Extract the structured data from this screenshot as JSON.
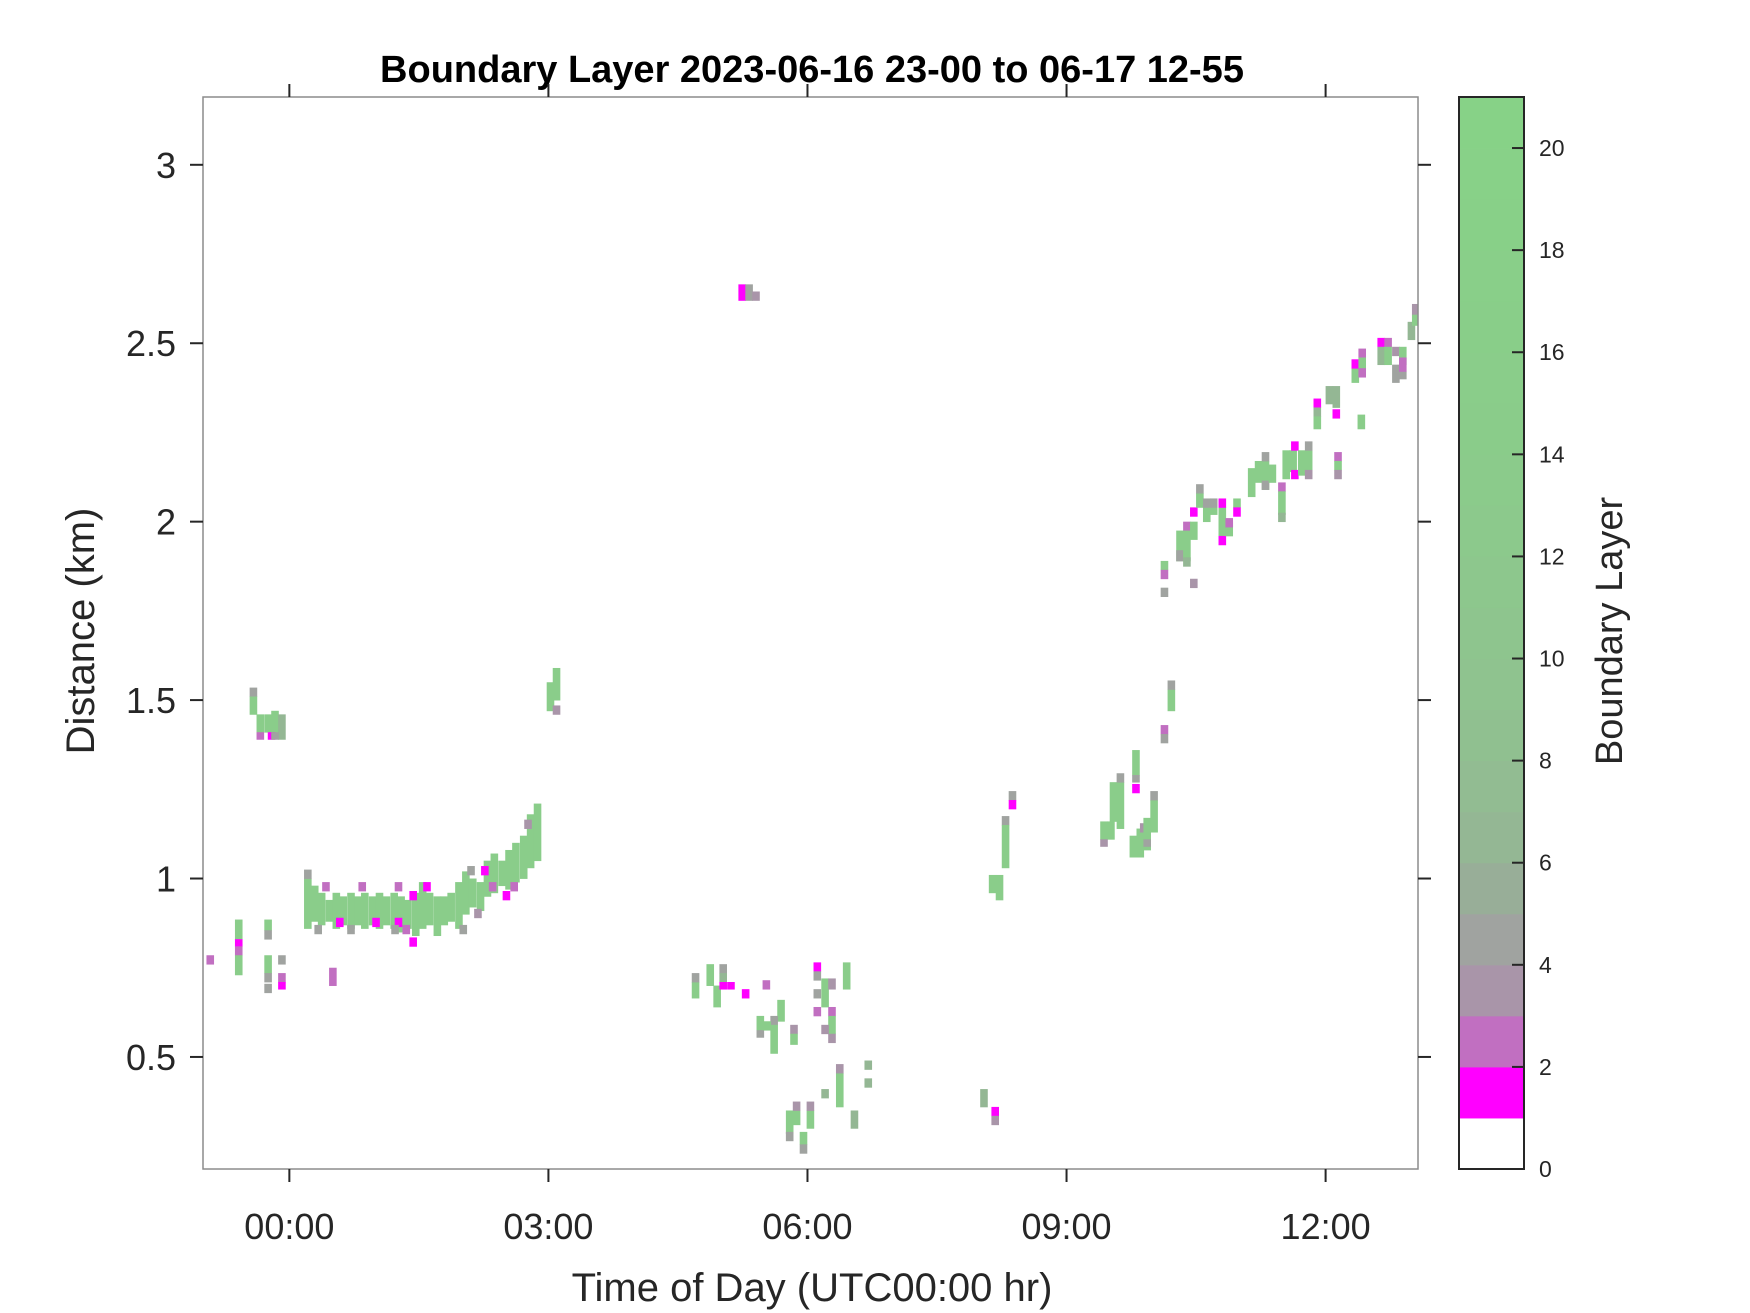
{
  "chart_data": {
    "type": "heatmap",
    "title": "Boundary Layer 2023-06-16 23-00 to 06-17 12-55",
    "xlabel": "Time of Day (UTC00:00 hr)",
    "ylabel": "Distance (km)",
    "colorbar_label": "Boundary Layer",
    "xlim": [
      -1.0,
      13.07
    ],
    "ylim": [
      0.186,
      3.19
    ],
    "x_ticks": [
      {
        "value": 0,
        "label": "00:00"
      },
      {
        "value": 3,
        "label": "03:00"
      },
      {
        "value": 6,
        "label": "06:00"
      },
      {
        "value": 9,
        "label": "09:00"
      },
      {
        "value": 12,
        "label": "12:00"
      }
    ],
    "y_ticks": [
      {
        "value": 0.5,
        "label": "0.5"
      },
      {
        "value": 1,
        "label": "1"
      },
      {
        "value": 1.5,
        "label": "1.5"
      },
      {
        "value": 2,
        "label": "2"
      },
      {
        "value": 2.5,
        "label": "2.5"
      },
      {
        "value": 3,
        "label": "3"
      }
    ],
    "colorbar_range": [
      0,
      21
    ],
    "colorbar_ticks": [
      "0",
      "2",
      "4",
      "6",
      "8",
      "10",
      "12",
      "14",
      "16",
      "18",
      "20"
    ],
    "colormap": [
      "#ffffff",
      "#ff00ff",
      "#c16fc1",
      "#a995a9",
      "#a0a3a0",
      "#98ae98",
      "#94b794",
      "#92bc92",
      "#90c090",
      "#8fc38f",
      "#8ec58e",
      "#8dc78d",
      "#8cc98c",
      "#8bcb8b",
      "#8acc8a",
      "#8acd8a",
      "#89ce89",
      "#89cf89",
      "#88d088",
      "#88d188",
      "#87d287"
    ],
    "grid": false,
    "cell_time_step_hours": 0.0833,
    "cells_columns": [
      "time_hours",
      "distance_km_bottom",
      "distance_km_top",
      "value"
    ],
    "cells": [
      [
        -0.96,
        0.76,
        0.785,
        2.5
      ],
      [
        -0.63,
        0.83,
        0.885,
        15
      ],
      [
        -0.63,
        0.81,
        0.83,
        1.5
      ],
      [
        -0.63,
        0.785,
        0.81,
        2.5
      ],
      [
        -0.63,
        0.73,
        0.785,
        15
      ],
      [
        -0.29,
        0.855,
        0.885,
        15
      ],
      [
        -0.29,
        0.83,
        0.855,
        4.5
      ],
      [
        -0.29,
        0.735,
        0.785,
        15
      ],
      [
        -0.29,
        0.71,
        0.735,
        4.5
      ],
      [
        -0.29,
        0.68,
        0.705,
        4.5
      ],
      [
        -0.13,
        0.76,
        0.785,
        4.5
      ],
      [
        -0.13,
        0.71,
        0.735,
        2.5
      ],
      [
        -0.13,
        0.69,
        0.71,
        1.5
      ],
      [
        0.46,
        0.7,
        0.75,
        2.5
      ],
      [
        -0.46,
        1.51,
        1.535,
        4.5
      ],
      [
        -0.46,
        1.46,
        1.51,
        15
      ],
      [
        -0.38,
        1.41,
        1.46,
        15
      ],
      [
        -0.29,
        1.41,
        1.46,
        15
      ],
      [
        -0.21,
        1.41,
        1.47,
        15
      ],
      [
        -0.13,
        1.39,
        1.46,
        6
      ],
      [
        -0.38,
        1.39,
        1.41,
        2.5
      ],
      [
        -0.25,
        1.39,
        1.41,
        1.5
      ],
      [
        -0.21,
        1.39,
        1.41,
        4.5
      ],
      [
        2.98,
        1.47,
        1.55,
        15
      ],
      [
        3.05,
        1.5,
        1.59,
        15
      ],
      [
        3.05,
        1.46,
        1.485,
        3.5
      ],
      [
        0.17,
        0.86,
        1.0,
        15
      ],
      [
        0.25,
        0.88,
        0.98,
        15
      ],
      [
        0.33,
        0.87,
        0.96,
        15
      ],
      [
        0.42,
        0.88,
        0.94,
        15
      ],
      [
        0.5,
        0.86,
        0.96,
        15
      ],
      [
        0.58,
        0.87,
        0.95,
        15
      ],
      [
        0.67,
        0.86,
        0.96,
        15
      ],
      [
        0.75,
        0.87,
        0.95,
        15
      ],
      [
        0.83,
        0.86,
        0.96,
        15
      ],
      [
        0.92,
        0.87,
        0.95,
        15
      ],
      [
        1.0,
        0.86,
        0.96,
        15
      ],
      [
        1.08,
        0.87,
        0.95,
        15
      ],
      [
        1.17,
        0.86,
        0.96,
        15
      ],
      [
        1.25,
        0.85,
        0.95,
        15
      ],
      [
        1.33,
        0.86,
        0.94,
        15
      ],
      [
        1.42,
        0.84,
        0.96,
        15
      ],
      [
        1.5,
        0.86,
        0.99,
        15
      ],
      [
        1.58,
        0.87,
        0.96,
        15
      ],
      [
        1.67,
        0.84,
        0.95,
        15
      ],
      [
        1.75,
        0.87,
        0.95,
        15
      ],
      [
        1.83,
        0.88,
        0.96,
        15
      ],
      [
        1.92,
        0.86,
        0.99,
        15
      ],
      [
        2.0,
        0.9,
        1.02,
        15
      ],
      [
        2.08,
        0.92,
        1.0,
        15
      ],
      [
        2.17,
        0.91,
        0.99,
        15
      ],
      [
        2.25,
        0.95,
        1.05,
        15
      ],
      [
        2.33,
        0.96,
        1.07,
        15
      ],
      [
        2.42,
        0.98,
        1.05,
        15
      ],
      [
        2.5,
        0.97,
        1.08,
        15
      ],
      [
        2.58,
        0.99,
        1.1,
        15
      ],
      [
        2.67,
        1.0,
        1.12,
        15
      ],
      [
        2.75,
        1.03,
        1.18,
        15
      ],
      [
        2.83,
        1.05,
        1.21,
        15
      ],
      [
        0.54,
        0.865,
        0.89,
        1.5
      ],
      [
        0.96,
        0.865,
        0.89,
        1.5
      ],
      [
        1.22,
        0.865,
        0.89,
        1.5
      ],
      [
        1.39,
        0.81,
        0.835,
        1.5
      ],
      [
        1.39,
        0.94,
        0.965,
        1.5
      ],
      [
        1.55,
        0.965,
        0.99,
        1.5
      ],
      [
        2.22,
        1.01,
        1.035,
        1.5
      ],
      [
        2.47,
        0.94,
        0.965,
        1.5
      ],
      [
        0.38,
        0.965,
        0.99,
        2.5
      ],
      [
        0.8,
        0.965,
        0.99,
        2.5
      ],
      [
        1.22,
        0.965,
        0.99,
        2.5
      ],
      [
        1.31,
        0.845,
        0.87,
        2.5
      ],
      [
        2.31,
        0.965,
        0.99,
        2.5
      ],
      [
        2.56,
        0.965,
        0.99,
        2.5
      ],
      [
        2.72,
        1.14,
        1.165,
        3.5
      ],
      [
        2.14,
        0.89,
        0.915,
        3.5
      ],
      [
        0.17,
        1.0,
        1.025,
        4.5
      ],
      [
        0.29,
        0.845,
        0.87,
        4.5
      ],
      [
        0.67,
        0.845,
        0.87,
        4.5
      ],
      [
        1.18,
        0.845,
        0.87,
        4.5
      ],
      [
        1.97,
        0.845,
        0.87,
        4.5
      ],
      [
        2.06,
        1.01,
        1.035,
        4.5
      ],
      [
        4.66,
        0.665,
        0.71,
        15
      ],
      [
        4.66,
        0.71,
        0.735,
        4.5
      ],
      [
        4.83,
        0.7,
        0.76,
        15
      ],
      [
        4.91,
        0.64,
        0.7,
        15
      ],
      [
        4.98,
        0.735,
        0.76,
        4.5
      ],
      [
        4.98,
        0.71,
        0.735,
        6
      ],
      [
        4.98,
        0.69,
        0.71,
        1.5
      ],
      [
        5.07,
        0.69,
        0.71,
        1.5
      ],
      [
        5.24,
        0.665,
        0.69,
        1.5
      ],
      [
        5.48,
        0.69,
        0.715,
        2.5
      ],
      [
        6.07,
        0.74,
        0.765,
        1.5
      ],
      [
        6.07,
        0.715,
        0.74,
        4.5
      ],
      [
        6.07,
        0.665,
        0.69,
        4.5
      ],
      [
        6.16,
        0.64,
        0.72,
        15
      ],
      [
        6.24,
        0.69,
        0.72,
        3.5
      ],
      [
        6.07,
        0.615,
        0.64,
        2.5
      ],
      [
        6.24,
        0.615,
        0.64,
        2.5
      ],
      [
        6.24,
        0.565,
        0.615,
        15
      ],
      [
        6.16,
        0.565,
        0.59,
        3.5
      ],
      [
        6.24,
        0.54,
        0.565,
        3.5
      ],
      [
        6.41,
        0.69,
        0.765,
        15
      ],
      [
        5.65,
        0.6,
        0.66,
        15
      ],
      [
        5.57,
        0.59,
        0.615,
        4.5
      ],
      [
        5.41,
        0.575,
        0.615,
        15
      ],
      [
        5.41,
        0.555,
        0.575,
        4.5
      ],
      [
        5.49,
        0.575,
        0.6,
        15
      ],
      [
        5.57,
        0.51,
        0.59,
        15
      ],
      [
        5.8,
        0.565,
        0.59,
        3.5
      ],
      [
        5.8,
        0.535,
        0.565,
        15
      ],
      [
        6.33,
        0.36,
        0.455,
        15
      ],
      [
        6.33,
        0.455,
        0.48,
        3.5
      ],
      [
        6.66,
        0.465,
        0.49,
        6
      ],
      [
        6.66,
        0.415,
        0.44,
        6
      ],
      [
        6.16,
        0.385,
        0.41,
        6
      ],
      [
        5.75,
        0.285,
        0.35,
        15
      ],
      [
        5.75,
        0.265,
        0.29,
        4.5
      ],
      [
        5.83,
        0.31,
        0.35,
        15
      ],
      [
        5.83,
        0.35,
        0.375,
        3.5
      ],
      [
        5.99,
        0.3,
        0.35,
        15
      ],
      [
        5.99,
        0.35,
        0.375,
        3.5
      ],
      [
        6.5,
        0.3,
        0.35,
        6
      ],
      [
        5.91,
        0.255,
        0.29,
        15
      ],
      [
        5.91,
        0.23,
        0.255,
        4.5
      ],
      [
        8.0,
        0.36,
        0.41,
        6
      ],
      [
        8.13,
        0.335,
        0.36,
        1.5
      ],
      [
        8.13,
        0.31,
        0.335,
        3.5
      ],
      [
        5.2,
        2.62,
        2.665,
        1.5
      ],
      [
        5.28,
        2.62,
        2.665,
        4.5
      ],
      [
        5.36,
        2.62,
        2.645,
        3.5
      ],
      [
        8.33,
        1.22,
        1.245,
        4.5
      ],
      [
        8.33,
        1.195,
        1.22,
        1.5
      ],
      [
        8.25,
        1.15,
        1.175,
        4.5
      ],
      [
        8.25,
        1.03,
        1.15,
        15
      ],
      [
        8.1,
        0.96,
        1.01,
        15
      ],
      [
        8.18,
        0.94,
        1.01,
        15
      ],
      [
        9.39,
        1.11,
        1.16,
        15
      ],
      [
        9.47,
        1.11,
        1.16,
        15
      ],
      [
        9.39,
        1.09,
        1.11,
        3.5
      ],
      [
        9.5,
        1.16,
        1.27,
        15
      ],
      [
        9.58,
        1.14,
        1.27,
        15
      ],
      [
        9.58,
        1.27,
        1.295,
        4.5
      ],
      [
        9.76,
        1.29,
        1.36,
        15
      ],
      [
        9.76,
        1.27,
        1.29,
        4.5
      ],
      [
        9.76,
        1.24,
        1.265,
        1.5
      ],
      [
        9.73,
        1.06,
        1.12,
        15
      ],
      [
        9.81,
        1.06,
        1.14,
        15
      ],
      [
        9.85,
        1.13,
        1.155,
        3.5
      ],
      [
        9.89,
        1.08,
        1.17,
        15
      ],
      [
        9.89,
        1.09,
        1.11,
        4.5
      ],
      [
        9.97,
        1.13,
        1.22,
        15
      ],
      [
        9.97,
        1.22,
        1.245,
        4.5
      ],
      [
        10.09,
        1.405,
        1.43,
        2.5
      ],
      [
        10.09,
        1.38,
        1.405,
        4.5
      ],
      [
        10.17,
        1.47,
        1.53,
        15
      ],
      [
        10.17,
        1.53,
        1.555,
        4.5
      ],
      [
        10.09,
        1.865,
        1.89,
        15
      ],
      [
        10.09,
        1.84,
        1.865,
        2.5
      ],
      [
        10.09,
        1.79,
        1.815,
        4.5
      ],
      [
        10.43,
        1.815,
        1.84,
        3.5
      ],
      [
        10.27,
        1.89,
        1.975,
        15
      ],
      [
        10.27,
        1.89,
        1.92,
        4.5
      ],
      [
        10.35,
        1.975,
        2.0,
        2.5
      ],
      [
        10.35,
        1.89,
        1.975,
        15
      ],
      [
        10.35,
        1.875,
        1.9,
        6
      ],
      [
        10.43,
        1.95,
        2.0,
        15
      ],
      [
        10.43,
        2.015,
        2.04,
        1.5
      ],
      [
        10.5,
        2.04,
        2.08,
        15
      ],
      [
        10.5,
        2.08,
        2.105,
        4.5
      ],
      [
        10.58,
        2.0,
        2.06,
        15
      ],
      [
        10.58,
        2.04,
        2.065,
        4.5
      ],
      [
        10.66,
        2.02,
        2.065,
        15
      ],
      [
        10.66,
        2.04,
        2.065,
        4.5
      ],
      [
        10.76,
        1.96,
        2.04,
        15
      ],
      [
        10.76,
        2.04,
        2.065,
        1.5
      ],
      [
        10.76,
        1.935,
        1.96,
        1.5
      ],
      [
        10.84,
        1.96,
        2.0,
        15
      ],
      [
        10.84,
        1.985,
        2.01,
        2.5
      ],
      [
        10.93,
        2.04,
        2.065,
        15
      ],
      [
        10.93,
        2.015,
        2.04,
        1.5
      ],
      [
        11.1,
        2.07,
        2.15,
        15
      ],
      [
        11.18,
        2.11,
        2.17,
        15
      ],
      [
        11.26,
        2.09,
        2.17,
        15
      ],
      [
        11.26,
        2.17,
        2.195,
        4.5
      ],
      [
        11.26,
        2.09,
        2.115,
        4.5
      ],
      [
        11.34,
        2.11,
        2.16,
        15
      ],
      [
        11.45,
        2.085,
        2.11,
        2.5
      ],
      [
        11.45,
        2.02,
        2.085,
        15
      ],
      [
        11.45,
        2.0,
        2.025,
        6
      ],
      [
        11.5,
        2.12,
        2.2,
        15
      ],
      [
        11.58,
        2.14,
        2.2,
        15
      ],
      [
        11.6,
        2.2,
        2.225,
        1.5
      ],
      [
        11.6,
        2.12,
        2.145,
        1.5
      ],
      [
        11.68,
        2.13,
        2.2,
        15
      ],
      [
        11.76,
        2.13,
        2.2,
        15
      ],
      [
        11.76,
        2.2,
        2.225,
        4.5
      ],
      [
        11.76,
        2.12,
        2.145,
        3.5
      ],
      [
        12.1,
        2.17,
        2.195,
        2.5
      ],
      [
        12.1,
        2.145,
        2.17,
        15
      ],
      [
        12.1,
        2.12,
        2.145,
        3.5
      ],
      [
        11.86,
        2.32,
        2.345,
        1.5
      ],
      [
        11.86,
        2.295,
        2.32,
        6
      ],
      [
        11.86,
        2.26,
        2.295,
        15
      ],
      [
        12.0,
        2.33,
        2.38,
        6
      ],
      [
        12.08,
        2.32,
        2.38,
        6
      ],
      [
        12.08,
        2.29,
        2.315,
        1.5
      ],
      [
        12.37,
        2.26,
        2.3,
        15
      ],
      [
        12.3,
        2.39,
        2.43,
        15
      ],
      [
        12.3,
        2.43,
        2.455,
        1.5
      ],
      [
        12.38,
        2.46,
        2.485,
        2.5
      ],
      [
        12.38,
        2.43,
        2.46,
        15
      ],
      [
        12.38,
        2.405,
        2.43,
        2.5
      ],
      [
        12.6,
        2.49,
        2.515,
        1.5
      ],
      [
        12.68,
        2.49,
        2.515,
        2.5
      ],
      [
        12.6,
        2.44,
        2.49,
        6
      ],
      [
        12.68,
        2.44,
        2.49,
        15
      ],
      [
        12.77,
        2.465,
        2.49,
        3.5
      ],
      [
        12.77,
        2.39,
        2.44,
        4.5
      ],
      [
        12.85,
        2.44,
        2.49,
        15
      ],
      [
        12.85,
        2.42,
        2.46,
        2.5
      ],
      [
        12.85,
        2.4,
        2.42,
        4.5
      ],
      [
        12.95,
        2.51,
        2.56,
        6
      ],
      [
        13.0,
        2.58,
        2.61,
        3.5
      ],
      [
        13.0,
        2.55,
        2.58,
        15
      ]
    ]
  }
}
